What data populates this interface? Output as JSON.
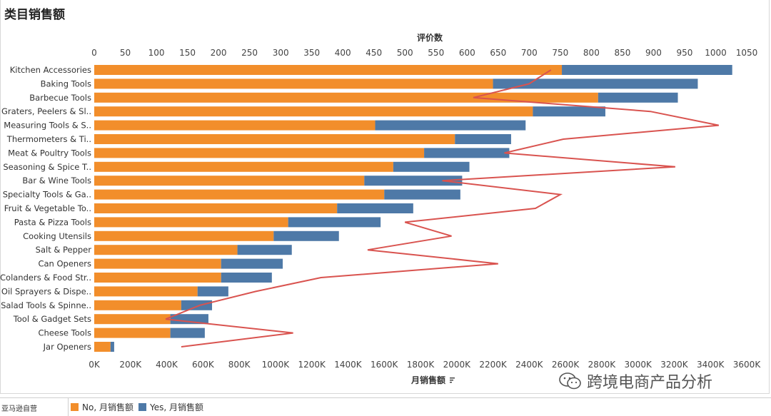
{
  "page": {
    "title": "类目销售额"
  },
  "legend": {
    "label": "亚马逊自营",
    "items": [
      {
        "name": "No, 月销售额",
        "color": "#F28E2B"
      },
      {
        "name": "Yes, 月销售额",
        "color": "#4E79A7"
      }
    ]
  },
  "watermark": {
    "text": "跨境电商产品分析",
    "icon": "wechat-icon"
  },
  "chart_data": {
    "type": "bar",
    "orientation": "horizontal",
    "stacked": true,
    "categories": [
      "Kitchen Accessories",
      "Baking Tools",
      "Barbecue Tools",
      "Graters, Peelers & Sl..",
      "Measuring Tools & S..",
      "Thermometers & Ti..",
      "Meat & Poultry Tools",
      "Seasoning & Spice T..",
      "Bar & Wine Tools",
      "Specialty Tools & Ga..",
      "Fruit & Vegetable To..",
      "Pasta & Pizza Tools",
      "Cooking Utensils",
      "Salt & Pepper",
      "Can Openers",
      "Colanders & Food Str..",
      "Oil Sprayers & Dispe..",
      "Salad Tools & Spinne..",
      "Tool & Gadget Sets",
      "Cheese Tools",
      "Jar Openers"
    ],
    "series": [
      {
        "name": "No, 月销售额",
        "color": "#F28E2B",
        "values": [
          2580000,
          2200000,
          2780000,
          2420000,
          1550000,
          1990000,
          1820000,
          1650000,
          1490000,
          1600000,
          1340000,
          1070000,
          990000,
          790000,
          700000,
          700000,
          570000,
          480000,
          420000,
          420000,
          90000
        ]
      },
      {
        "name": "Yes, 月销售额",
        "color": "#4E79A7",
        "values": [
          940000,
          1130000,
          440000,
          400000,
          830000,
          310000,
          470000,
          420000,
          540000,
          420000,
          420000,
          510000,
          360000,
          300000,
          340000,
          280000,
          170000,
          170000,
          210000,
          190000,
          20000
        ]
      }
    ],
    "xlabel": "月销售额",
    "xlim": [
      0,
      3600000
    ],
    "xticks": [
      "0K",
      "200K",
      "400K",
      "600K",
      "800K",
      "1000K",
      "1200K",
      "1400K",
      "1600K",
      "1800K",
      "2000K",
      "2200K",
      "2400K",
      "2600K",
      "2800K",
      "3000K",
      "3200K",
      "3400K",
      "3600K"
    ],
    "line": {
      "name": "评价数",
      "color": "#D9534F",
      "values": [
        735,
        700,
        610,
        895,
        1005,
        755,
        660,
        935,
        560,
        750,
        710,
        500,
        575,
        440,
        650,
        365,
        260,
        170,
        115,
        320,
        140
      ],
      "axis_label": "评价数",
      "xlim": [
        0,
        1050
      ],
      "xticks": [
        "0",
        "50",
        "100",
        "150",
        "200",
        "250",
        "300",
        "350",
        "400",
        "450",
        "500",
        "550",
        "600",
        "650",
        "700",
        "750",
        "800",
        "850",
        "900",
        "950",
        "1000",
        "1050"
      ]
    },
    "grid": false,
    "legend_position": "bottom-left"
  }
}
